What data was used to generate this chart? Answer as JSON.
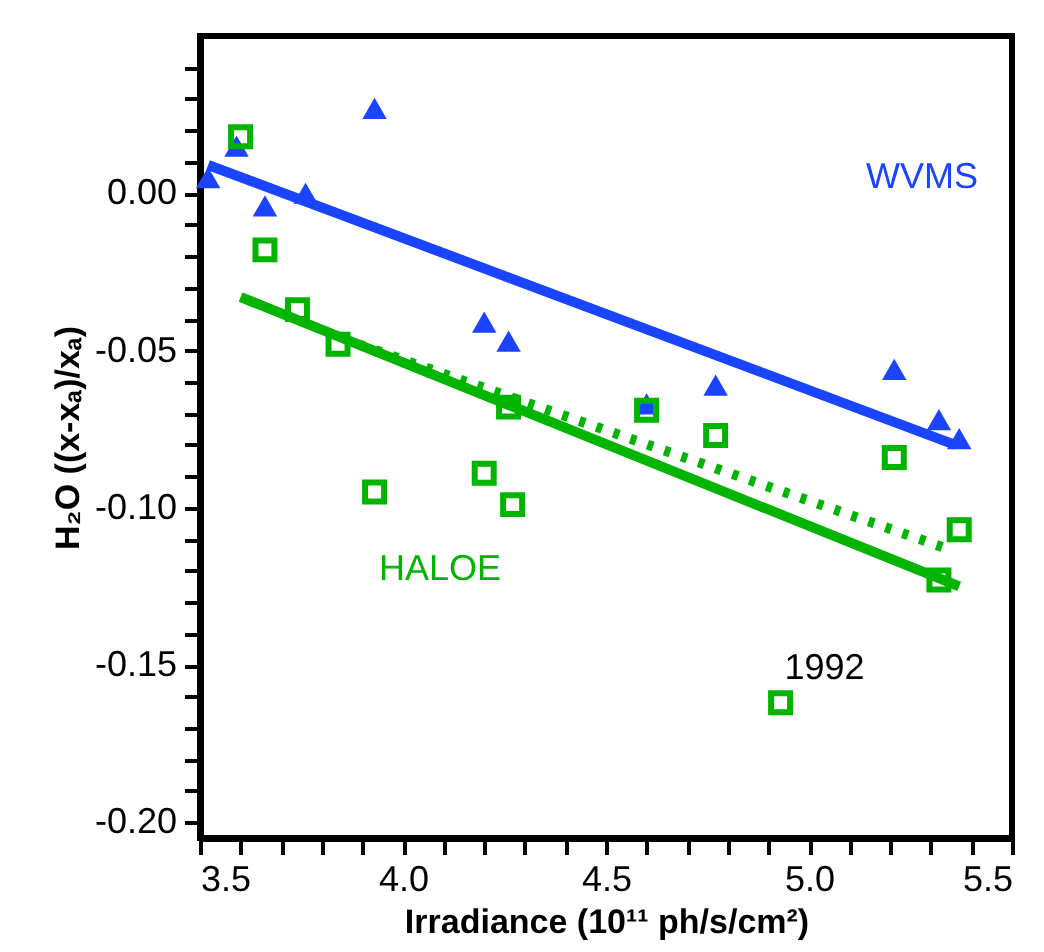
{
  "chart_data": {
    "type": "scatter",
    "xlabel": "Irradiance (10¹¹ ph/s/cm²)",
    "ylabel": "H₂O ((x-xₐ)/xₐ)",
    "xlim": [
      3.5,
      5.5
    ],
    "ylim": [
      -0.205,
      0.05
    ],
    "xticks": [
      {
        "value": 3.5,
        "label": "3.5"
      },
      {
        "value": 3.6,
        "label": null
      },
      {
        "value": 3.7,
        "label": null
      },
      {
        "value": 3.8,
        "label": null
      },
      {
        "value": 3.9,
        "label": null
      },
      {
        "value": 4,
        "label": "4.0"
      },
      {
        "value": 4.1,
        "label": null
      },
      {
        "value": 4.2,
        "label": null
      },
      {
        "value": 4.3,
        "label": null
      },
      {
        "value": 4.4,
        "label": null
      },
      {
        "value": 4.5,
        "label": "4.5"
      },
      {
        "value": 4.6,
        "label": null
      },
      {
        "value": 4.7,
        "label": null
      },
      {
        "value": 4.8,
        "label": null
      },
      {
        "value": 4.9,
        "label": null
      },
      {
        "value": 5,
        "label": "5.0"
      },
      {
        "value": 5.1,
        "label": null
      },
      {
        "value": 5.2,
        "label": null
      },
      {
        "value": 5.3,
        "label": null
      },
      {
        "value": 5.4,
        "label": null
      },
      {
        "value": 5.5,
        "label": "5.5"
      }
    ],
    "yticks": [
      {
        "value": -0.2,
        "label": "-0.20"
      },
      {
        "value": -0.19,
        "label": null
      },
      {
        "value": -0.18,
        "label": null
      },
      {
        "value": -0.17,
        "label": null
      },
      {
        "value": -0.16,
        "label": null
      },
      {
        "value": -0.15,
        "label": "-0.15"
      },
      {
        "value": -0.14,
        "label": null
      },
      {
        "value": -0.13,
        "label": null
      },
      {
        "value": -0.12,
        "label": null
      },
      {
        "value": -0.11,
        "label": null
      },
      {
        "value": -0.1,
        "label": "-0.10"
      },
      {
        "value": -0.09,
        "label": null
      },
      {
        "value": -0.08,
        "label": null
      },
      {
        "value": -0.07,
        "label": null
      },
      {
        "value": -0.06,
        "label": null
      },
      {
        "value": -0.05,
        "label": "-0.05"
      },
      {
        "value": -0.04,
        "label": null
      },
      {
        "value": -0.03,
        "label": null
      },
      {
        "value": -0.02,
        "label": null
      },
      {
        "value": -0.01,
        "label": null
      },
      {
        "value": 0,
        "label": "0.00"
      },
      {
        "value": 0.01,
        "label": null
      },
      {
        "value": 0.02,
        "label": null
      },
      {
        "value": 0.03,
        "label": null
      },
      {
        "value": 0.04,
        "label": null
      }
    ],
    "series": [
      {
        "marker": "triangle",
        "color": "#1a44ff",
        "x": [
          3.52,
          3.59,
          3.66,
          3.76,
          3.93,
          4.2,
          4.26,
          4.6,
          4.77,
          5.21,
          5.32,
          5.37
        ],
        "values": [
          0.005,
          0.015,
          -0.004,
          0.0,
          0.027,
          -0.041,
          -0.047,
          -0.067,
          -0.061,
          -0.056,
          -0.072,
          -0.078
        ]
      },
      {
        "marker": "square",
        "color": "#00b400",
        "x": [
          3.6,
          3.66,
          3.74,
          3.84,
          3.93,
          4.2,
          4.26,
          4.27,
          4.6,
          4.77,
          4.93,
          5.21,
          5.32,
          5.37
        ],
        "values": [
          0.018,
          -0.018,
          -0.037,
          -0.048,
          -0.095,
          -0.089,
          -0.068,
          -0.099,
          -0.069,
          -0.077,
          -0.162,
          -0.084,
          -0.123,
          -0.107
        ]
      },
      {
        "type": "line",
        "line_style": "solid",
        "color": "#1a44ff",
        "x": [
          3.52,
          5.36
        ],
        "values": [
          0.009,
          -0.08
        ]
      },
      {
        "type": "line",
        "line_style": "solid",
        "color": "#00b400",
        "x": [
          3.6,
          5.37
        ],
        "values": [
          -0.033,
          -0.125
        ]
      },
      {
        "type": "line",
        "line_style": "dotted",
        "color": "#00b400",
        "x": [
          3.89,
          5.34
        ],
        "values": [
          -0.048,
          -0.113
        ]
      }
    ],
    "annotations": [
      "WVMS",
      "HALOE",
      {
        "text": "1992",
        "x": 4.93,
        "y": -0.162
      }
    ]
  }
}
